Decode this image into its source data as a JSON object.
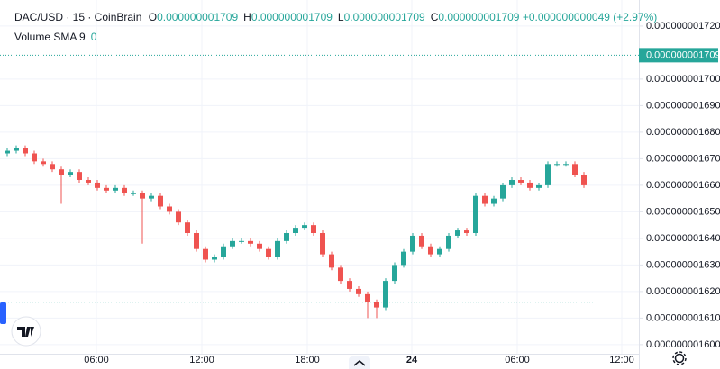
{
  "chart_data": {
    "type": "candlestick",
    "symbol": "DAC/USD · 15 · CoinBrain",
    "ohlc_legend": [
      {
        "key": "O",
        "value": "0.000000001709"
      },
      {
        "key": "H",
        "value": "0.000000001709"
      },
      {
        "key": "L",
        "value": "0.000000001709"
      },
      {
        "key": "C",
        "value": "0.000000001709"
      }
    ],
    "change": "+0.000000000049 (+2.97%)",
    "indicator": {
      "name": "Volume SMA 9",
      "value": "0"
    },
    "up_color": "#26a69a",
    "down_color": "#ef5350",
    "open": [
      1.672e-09,
      1.673e-09,
      1.674e-09,
      1.672e-09,
      1.669e-09,
      1.668e-09,
      1.666e-09,
      1.664e-09,
      1.665e-09,
      1.662e-09,
      1.661e-09,
      1.659e-09,
      1.658e-09,
      1.659e-09,
      1.657e-09,
      1.657e-09,
      1.655e-09,
      1.656e-09,
      1.652e-09,
      1.65e-09,
      1.646e-09,
      1.642e-09,
      1.636e-09,
      1.632e-09,
      1.633e-09,
      1.637e-09,
      1.639e-09,
      1.639e-09,
      1.638e-09,
      1.636e-09,
      1.633e-09,
      1.639e-09,
      1.642e-09,
      1.644e-09,
      1.645e-09,
      1.642e-09,
      1.634e-09,
      1.629e-09,
      1.624e-09,
      1.621e-09,
      1.619e-09,
      1.616e-09,
      1.614e-09,
      1.624e-09,
      1.63e-09,
      1.635e-09,
      1.641e-09,
      1.637e-09,
      1.634e-09,
      1.636e-09,
      1.641e-09,
      1.643e-09,
      1.642e-09,
      1.656e-09,
      1.653e-09,
      1.655e-09,
      1.66e-09,
      1.662e-09,
      1.661e-09,
      1.659e-09,
      1.66e-09,
      1.668e-09,
      1.668e-09,
      1.668e-09,
      1.664e-09
    ],
    "high": [
      1.674e-09,
      1.675e-09,
      1.675e-09,
      1.673e-09,
      1.67e-09,
      1.669e-09,
      1.667e-09,
      1.666e-09,
      1.666e-09,
      1.663e-09,
      1.662e-09,
      1.66e-09,
      1.66e-09,
      1.66e-09,
      1.658e-09,
      1.658e-09,
      1.657e-09,
      1.657e-09,
      1.653e-09,
      1.651e-09,
      1.647e-09,
      1.643e-09,
      1.637e-09,
      1.634e-09,
      1.638e-09,
      1.64e-09,
      1.64e-09,
      1.64e-09,
      1.639e-09,
      1.637e-09,
      1.64e-09,
      1.643e-09,
      1.645e-09,
      1.646e-09,
      1.646e-09,
      1.643e-09,
      1.635e-09,
      1.63e-09,
      1.625e-09,
      1.622e-09,
      1.62e-09,
      1.617e-09,
      1.625e-09,
      1.631e-09,
      1.636e-09,
      1.642e-09,
      1.642e-09,
      1.638e-09,
      1.637e-09,
      1.642e-09,
      1.644e-09,
      1.644e-09,
      1.657e-09,
      1.657e-09,
      1.656e-09,
      1.661e-09,
      1.663e-09,
      1.663e-09,
      1.662e-09,
      1.661e-09,
      1.669e-09,
      1.669e-09,
      1.669e-09,
      1.669e-09,
      1.665e-09
    ],
    "low": [
      1.671e-09,
      1.672e-09,
      1.671e-09,
      1.668e-09,
      1.667e-09,
      1.665e-09,
      1.653e-09,
      1.663e-09,
      1.661e-09,
      1.66e-09,
      1.658e-09,
      1.657e-09,
      1.657e-09,
      1.656e-09,
      1.656e-09,
      1.638e-09,
      1.654e-09,
      1.651e-09,
      1.649e-09,
      1.645e-09,
      1.641e-09,
      1.635e-09,
      1.631e-09,
      1.631e-09,
      1.632e-09,
      1.636e-09,
      1.638e-09,
      1.637e-09,
      1.635e-09,
      1.632e-09,
      1.632e-09,
      1.638e-09,
      1.641e-09,
      1.643e-09,
      1.641e-09,
      1.633e-09,
      1.628e-09,
      1.623e-09,
      1.62e-09,
      1.618e-09,
      1.61e-09,
      1.61e-09,
      1.613e-09,
      1.623e-09,
      1.629e-09,
      1.634e-09,
      1.636e-09,
      1.633e-09,
      1.633e-09,
      1.635e-09,
      1.64e-09,
      1.641e-09,
      1.641e-09,
      1.652e-09,
      1.652e-09,
      1.654e-09,
      1.659e-09,
      1.66e-09,
      1.658e-09,
      1.658e-09,
      1.659e-09,
      1.667e-09,
      1.667e-09,
      1.663e-09,
      1.659e-09
    ],
    "close": [
      1.673e-09,
      1.674e-09,
      1.672e-09,
      1.669e-09,
      1.668e-09,
      1.666e-09,
      1.664e-09,
      1.665e-09,
      1.662e-09,
      1.661e-09,
      1.659e-09,
      1.658e-09,
      1.659e-09,
      1.657e-09,
      1.657e-09,
      1.655e-09,
      1.656e-09,
      1.652e-09,
      1.65e-09,
      1.646e-09,
      1.642e-09,
      1.636e-09,
      1.632e-09,
      1.633e-09,
      1.637e-09,
      1.639e-09,
      1.639e-09,
      1.638e-09,
      1.636e-09,
      1.633e-09,
      1.639e-09,
      1.642e-09,
      1.644e-09,
      1.645e-09,
      1.642e-09,
      1.634e-09,
      1.629e-09,
      1.624e-09,
      1.621e-09,
      1.619e-09,
      1.616e-09,
      1.614e-09,
      1.624e-09,
      1.63e-09,
      1.635e-09,
      1.641e-09,
      1.637e-09,
      1.634e-09,
      1.636e-09,
      1.641e-09,
      1.643e-09,
      1.642e-09,
      1.656e-09,
      1.653e-09,
      1.655e-09,
      1.66e-09,
      1.662e-09,
      1.661e-09,
      1.659e-09,
      1.66e-09,
      1.668e-09,
      1.668e-09,
      1.668e-09,
      1.664e-09,
      1.66e-09
    ],
    "xtick_labels": [
      "06:00",
      "12:00",
      "18:00",
      "24",
      "06:00",
      "12:00"
    ],
    "ylim": [
      1.5942e-09,
      1.7298e-09
    ],
    "yticks": [
      {
        "value": 1.72e-09,
        "label": "0.000000001720"
      },
      {
        "value": 1.7e-09,
        "label": "0.000000001700"
      },
      {
        "value": 1.69e-09,
        "label": "0.000000001690"
      },
      {
        "value": 1.68e-09,
        "label": "0.000000001680"
      },
      {
        "value": 1.67e-09,
        "label": "0.000000001670"
      },
      {
        "value": 1.66e-09,
        "label": "0.000000001660"
      },
      {
        "value": 1.65e-09,
        "label": "0.000000001650"
      },
      {
        "value": 1.64e-09,
        "label": "0.000000001640"
      },
      {
        "value": 1.63e-09,
        "label": "0.000000001630"
      },
      {
        "value": 1.62e-09,
        "label": "0.000000001620"
      },
      {
        "value": 1.61e-09,
        "label": "0.000000001610"
      },
      {
        "value": 1.6e-09,
        "label": "0.000000001600"
      }
    ],
    "last_price": {
      "value": 1.709e-09,
      "label": "0.000000001709"
    },
    "price_line": 1.616e-09,
    "grid": true
  }
}
